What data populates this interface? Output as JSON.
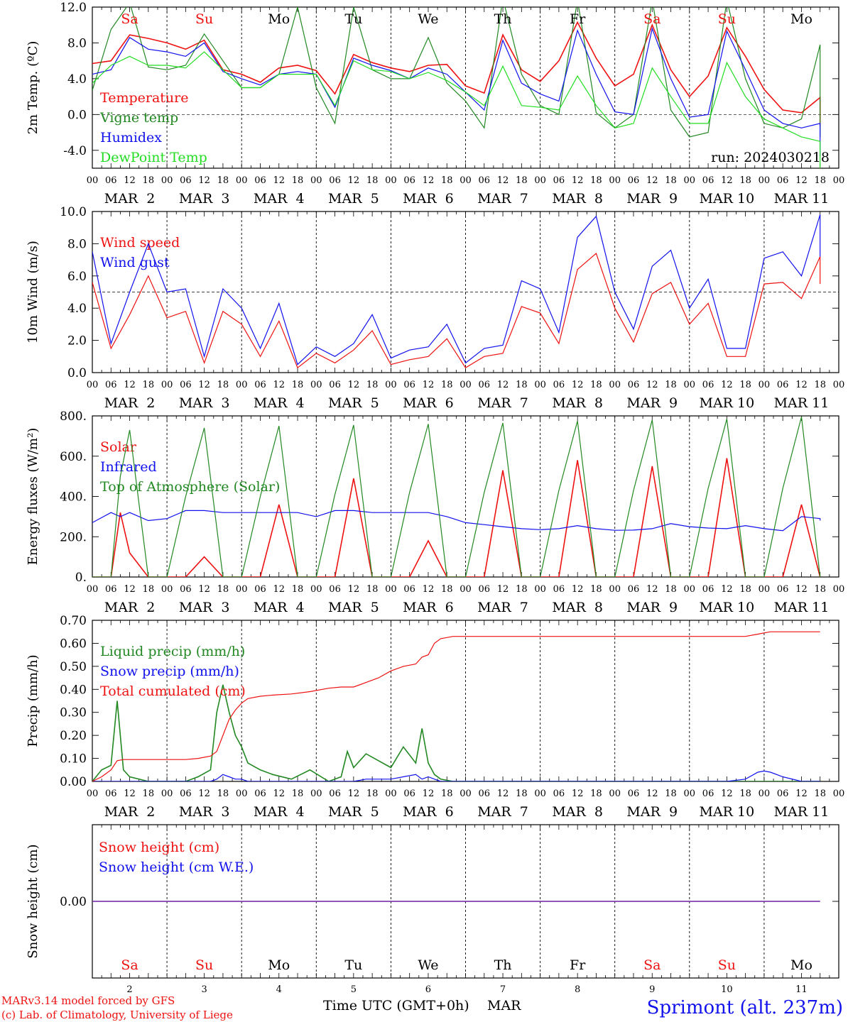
{
  "x_axis": {
    "hour_labels": [
      "00",
      "06",
      "12",
      "18"
    ],
    "date_labels": [
      "MAR  2",
      "MAR  3",
      "MAR  4",
      "MAR  5",
      "MAR  6",
      "MAR  7",
      "MAR  8",
      "MAR  9",
      "MAR 10",
      "MAR 11"
    ],
    "weekdays": [
      {
        "label": "Sa",
        "color": "#ee1111"
      },
      {
        "label": "Su",
        "color": "#ee1111"
      },
      {
        "label": "Mo",
        "color": "#000000"
      },
      {
        "label": "Tu",
        "color": "#000000"
      },
      {
        "label": "We",
        "color": "#000000"
      },
      {
        "label": "Th",
        "color": "#000000"
      },
      {
        "label": "Fr",
        "color": "#000000"
      },
      {
        "label": "Sa",
        "color": "#ee1111"
      },
      {
        "label": "Su",
        "color": "#ee1111"
      },
      {
        "label": "Mo",
        "color": "#000000"
      }
    ],
    "day_numbers": [
      "2",
      "3",
      "4",
      "5",
      "6",
      "7",
      "8",
      "9",
      "10",
      "11"
    ],
    "title": "Time UTC (GMT+0h)",
    "month": "MAR"
  },
  "run_label": "run: 2024030218",
  "footer": {
    "model": "MARv3.14 model forced by GFS",
    "copyright": "(c) Lab. of Climatology, University of Liege",
    "station": "Sprimont (alt. 237m)"
  },
  "colors": {
    "red": "#ee1111",
    "green": "#228822",
    "blue": "#1111ee",
    "lightgreen": "#22dd22",
    "purple": "#7733aa"
  },
  "chart_data": [
    {
      "type": "line",
      "ylabel": "2m Temp. (ºC)",
      "ylim": [
        -6,
        12
      ],
      "ticks": [
        -4,
        0,
        4,
        8,
        12
      ],
      "tick_labels": [
        "-4.0",
        "0.0",
        "4.0",
        "8.0",
        "12.0"
      ],
      "ref_line": 0,
      "x": [
        0,
        6,
        12,
        18,
        24,
        30,
        36,
        42,
        48,
        54,
        60,
        66,
        72,
        78,
        84,
        90,
        96,
        102,
        108,
        114,
        120,
        126,
        132,
        138,
        144,
        150,
        156,
        162,
        168,
        174,
        180,
        186,
        192,
        198,
        204,
        210,
        216,
        222,
        228,
        234,
        234
      ],
      "series": [
        {
          "name": "Temperature",
          "color": "#ee1111",
          "values": [
            5.7,
            6.0,
            8.9,
            8.5,
            8.0,
            7.3,
            8.3,
            5.0,
            4.5,
            3.6,
            5.2,
            5.5,
            4.9,
            2.3,
            6.7,
            5.8,
            5.2,
            4.8,
            5.5,
            5.6,
            3.2,
            2.4,
            8.9,
            5.0,
            3.7,
            6.0,
            10.3,
            6.3,
            3.2,
            4.5,
            10.0,
            5.0,
            2.0,
            4.3,
            9.7,
            6.5,
            2.8,
            0.5,
            0.2,
            1.9,
            -1.3
          ]
        },
        {
          "name": "Vigne temp",
          "color": "#228822",
          "values": [
            2.7,
            9.5,
            12.5,
            5.3,
            5.0,
            5.5,
            9.0,
            6.0,
            3.0,
            3.0,
            4.5,
            12.0,
            3.0,
            -1.0,
            12.0,
            5.0,
            4.0,
            4.0,
            8.6,
            3.5,
            1.5,
            -1.5,
            13.0,
            4.5,
            1.0,
            0.0,
            12.8,
            0.2,
            -1.5,
            0.0,
            12.8,
            0.5,
            -2.5,
            -2.0,
            12.8,
            4.0,
            -1.0,
            -1.5,
            -0.5,
            7.8,
            -2.5
          ]
        },
        {
          "name": "Humidex",
          "color": "#1111ee",
          "values": [
            4.5,
            5.0,
            8.6,
            7.3,
            7.0,
            6.5,
            8.0,
            4.8,
            4.0,
            3.3,
            4.5,
            4.8,
            4.5,
            0.8,
            6.3,
            5.5,
            4.9,
            4.0,
            5.2,
            4.5,
            2.5,
            0.5,
            8.3,
            3.5,
            2.3,
            1.5,
            9.4,
            4.5,
            0.3,
            0.0,
            9.6,
            4.0,
            -0.3,
            0.0,
            9.3,
            5.0,
            0.5,
            -1.0,
            -1.5,
            -1.0,
            -4.7
          ]
        },
        {
          "name": "DewPoint Temp",
          "color": "#22dd22",
          "values": [
            3.5,
            5.5,
            6.5,
            5.5,
            5.5,
            5.2,
            7.0,
            5.0,
            3.0,
            3.0,
            4.5,
            4.5,
            4.5,
            1.0,
            6.0,
            5.0,
            4.8,
            4.0,
            4.7,
            3.8,
            2.5,
            1.0,
            5.4,
            1.0,
            0.8,
            0.5,
            4.3,
            1.0,
            -1.5,
            -1.0,
            5.2,
            2.0,
            -1.0,
            -1.0,
            5.8,
            2.0,
            -0.5,
            -1.5,
            -2.5,
            -3.0,
            -6.0
          ]
        }
      ]
    },
    {
      "type": "line",
      "ylabel": "10m Wind (m/s)",
      "ylim": [
        0,
        10
      ],
      "ticks": [
        0,
        2,
        4,
        6,
        8,
        10
      ],
      "tick_labels": [
        "0.0",
        "2.0",
        "4.0",
        "6.0",
        "8.0",
        "10.0"
      ],
      "ref_line": 5,
      "x": [
        0,
        6,
        12,
        18,
        24,
        30,
        36,
        42,
        48,
        54,
        60,
        66,
        72,
        78,
        84,
        90,
        96,
        102,
        108,
        114,
        120,
        126,
        132,
        138,
        144,
        150,
        156,
        162,
        168,
        174,
        180,
        186,
        192,
        198,
        204,
        210,
        216,
        222,
        228,
        234,
        234
      ],
      "series": [
        {
          "name": "Wind speed",
          "color": "#ee1111",
          "values": [
            5.6,
            1.5,
            3.6,
            6.0,
            3.4,
            3.8,
            0.6,
            3.8,
            3.0,
            1.0,
            3.2,
            0.3,
            1.2,
            0.6,
            1.4,
            2.6,
            0.5,
            0.8,
            1.0,
            2.1,
            0.3,
            1.0,
            1.2,
            4.1,
            3.7,
            1.8,
            6.4,
            7.4,
            4.0,
            1.9,
            4.9,
            5.6,
            3.0,
            4.3,
            1.0,
            1.0,
            5.5,
            5.6,
            4.6,
            7.2,
            5.5
          ]
        },
        {
          "name": "Wind gust",
          "color": "#1111ee",
          "values": [
            7.5,
            1.8,
            5.0,
            8.0,
            5.0,
            5.2,
            1.0,
            5.2,
            4.0,
            1.5,
            4.3,
            0.5,
            1.6,
            1.0,
            1.8,
            3.6,
            0.9,
            1.4,
            1.6,
            3.0,
            0.6,
            1.5,
            1.7,
            5.7,
            5.2,
            2.5,
            8.4,
            9.7,
            5.0,
            2.7,
            6.6,
            7.6,
            4.0,
            5.8,
            1.5,
            1.5,
            7.1,
            7.5,
            6.0,
            9.8,
            7.2
          ]
        }
      ]
    },
    {
      "type": "line",
      "ylabel": "Energy fluxes (W/m²)",
      "ylim": [
        0,
        800
      ],
      "ticks": [
        0,
        200,
        400,
        600,
        800
      ],
      "tick_labels": [
        "0.",
        "200.",
        "400.",
        "600.",
        "800."
      ],
      "ref_line": null,
      "x": [
        0,
        6,
        9,
        12,
        18,
        24,
        30,
        36,
        42,
        48,
        54,
        60,
        66,
        72,
        78,
        84,
        90,
        96,
        102,
        108,
        114,
        120,
        126,
        132,
        138,
        144,
        150,
        156,
        162,
        168,
        174,
        180,
        186,
        192,
        198,
        204,
        210,
        216,
        222,
        228,
        234,
        234
      ],
      "series": [
        {
          "name": "Solar",
          "color": "#ee1111",
          "values": [
            0,
            0,
            320,
            120,
            0,
            0,
            0,
            100,
            0,
            0,
            0,
            360,
            0,
            0,
            0,
            490,
            0,
            0,
            0,
            180,
            0,
            0,
            0,
            530,
            0,
            0,
            0,
            580,
            0,
            0,
            0,
            550,
            0,
            0,
            0,
            590,
            0,
            0,
            0,
            360,
            0,
            0
          ]
        },
        {
          "name": "Infrared",
          "color": "#1111ee",
          "values": [
            270,
            320,
            300,
            320,
            280,
            290,
            330,
            330,
            320,
            320,
            320,
            320,
            320,
            300,
            330,
            330,
            320,
            320,
            320,
            320,
            300,
            270,
            260,
            250,
            240,
            235,
            240,
            255,
            240,
            232,
            233,
            240,
            265,
            250,
            243,
            240,
            255,
            240,
            230,
            300,
            290,
            280
          ]
        },
        {
          "name": "Top of Atmosphere (Solar)",
          "color": "#228822",
          "values": [
            0,
            0,
            500,
            730,
            0,
            0,
            400,
            740,
            0,
            0,
            400,
            750,
            0,
            0,
            410,
            755,
            0,
            0,
            420,
            760,
            0,
            0,
            420,
            765,
            0,
            0,
            430,
            775,
            0,
            0,
            430,
            780,
            0,
            0,
            440,
            785,
            0,
            0,
            440,
            795,
            0,
            0
          ]
        }
      ]
    },
    {
      "type": "line",
      "ylabel": "Precip (mm/h)",
      "ylim": [
        0,
        0.7
      ],
      "ticks": [
        0,
        0.1,
        0.2,
        0.3,
        0.4,
        0.5,
        0.6,
        0.7
      ],
      "tick_labels": [
        "0.00",
        "0.10",
        "0.20",
        "0.30",
        "0.40",
        "0.50",
        "0.60",
        "0.70"
      ],
      "ref_line": null,
      "x": [
        0,
        3,
        6,
        8,
        10,
        12,
        18,
        24,
        30,
        34,
        38,
        40,
        42,
        44,
        46,
        48,
        50,
        54,
        58,
        64,
        70,
        76,
        80,
        82,
        84,
        88,
        92,
        96,
        100,
        104,
        106,
        108,
        110,
        112,
        116,
        120,
        126,
        132,
        138,
        144,
        150,
        156,
        162,
        168,
        174,
        180,
        186,
        192,
        198,
        204,
        210,
        214,
        216,
        218,
        222,
        228,
        234,
        234
      ],
      "series": [
        {
          "name": "Liquid precip (mm/h)",
          "color": "#228822",
          "values": [
            0,
            0.05,
            0.07,
            0.35,
            0.05,
            0.02,
            0,
            0,
            0,
            0.02,
            0.05,
            0.3,
            0.42,
            0.3,
            0.2,
            0.15,
            0.08,
            0.05,
            0.03,
            0.01,
            0.05,
            0,
            0.02,
            0.13,
            0.06,
            0.12,
            0.09,
            0.06,
            0.15,
            0.08,
            0.23,
            0.08,
            0.03,
            0.01,
            0,
            0,
            0,
            0,
            0,
            0,
            0,
            0,
            0,
            0,
            0,
            0,
            0,
            0,
            0,
            0,
            0,
            0,
            0,
            0,
            0,
            0,
            0,
            0
          ]
        },
        {
          "name": "Snow precip (mm/h)",
          "color": "#1111ee",
          "values": [
            0,
            0,
            0,
            0,
            0,
            0,
            0,
            0,
            0,
            0,
            0,
            0.01,
            0.03,
            0.02,
            0.01,
            0.01,
            0,
            0,
            0,
            0,
            0,
            0,
            0,
            0,
            0,
            0.01,
            0.01,
            0.01,
            0.02,
            0.03,
            0.01,
            0.02,
            0.01,
            0,
            0,
            0,
            0,
            0,
            0,
            0,
            0,
            0,
            0,
            0,
            0,
            0,
            0,
            0,
            0,
            0,
            0.01,
            0.04,
            0.045,
            0.04,
            0.02,
            0,
            0,
            0
          ]
        },
        {
          "name": "Total cumulated (cm)",
          "color": "#ee1111",
          "values": [
            0,
            0.02,
            0.05,
            0.09,
            0.095,
            0.095,
            0.095,
            0.095,
            0.095,
            0.1,
            0.11,
            0.13,
            0.2,
            0.27,
            0.31,
            0.34,
            0.36,
            0.37,
            0.375,
            0.38,
            0.39,
            0.405,
            0.41,
            0.41,
            0.41,
            0.43,
            0.45,
            0.48,
            0.5,
            0.51,
            0.54,
            0.55,
            0.6,
            0.62,
            0.63,
            0.63,
            0.63,
            0.63,
            0.63,
            0.63,
            0.63,
            0.63,
            0.63,
            0.63,
            0.63,
            0.63,
            0.63,
            0.63,
            0.63,
            0.63,
            0.63,
            0.64,
            0.645,
            0.65,
            0.65,
            0.65,
            0.65,
            0.65
          ]
        }
      ]
    },
    {
      "type": "line",
      "ylabel": "Snow height (cm)",
      "ylim": [
        -1,
        1
      ],
      "ticks": [
        0
      ],
      "tick_labels": [
        "0.00"
      ],
      "ref_line": null,
      "x": [
        0,
        234
      ],
      "series": [
        {
          "name": "Snow height (cm)",
          "color": "#ee1111",
          "values": [
            0,
            0
          ]
        },
        {
          "name": "Snow height (cm W.E.)",
          "color": "#1111ee",
          "values": [
            0,
            0
          ]
        }
      ]
    }
  ]
}
